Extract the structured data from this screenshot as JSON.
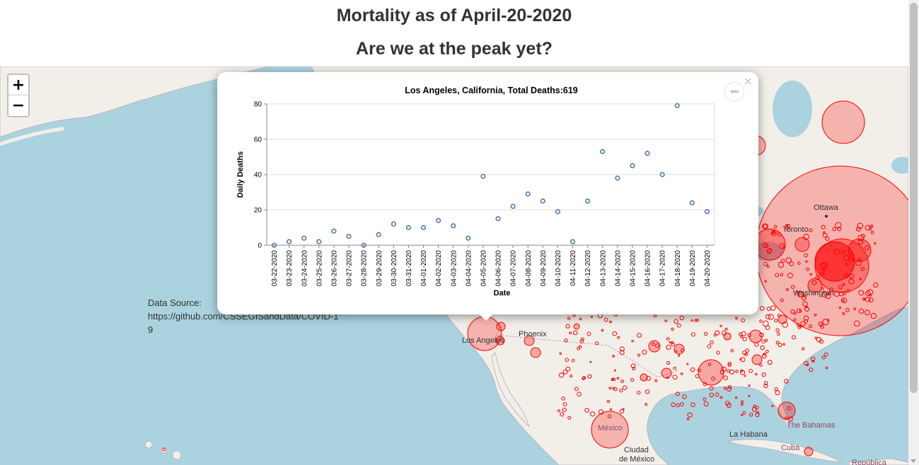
{
  "header": {
    "title": "Mortality as of April-20-2020",
    "subtitle": "Are we at the peak yet?"
  },
  "zoom": {
    "in_label": "+",
    "out_label": "−"
  },
  "data_source": {
    "label": "Data Source:",
    "url": "https://github.com/CSSEGISandData/COVID-19"
  },
  "map_labels": {
    "ottawa": "Ottawa",
    "toronto": "Toronto",
    "washington": "Washington",
    "phoenix": "Phoenix",
    "los_angeles": "Los Angeles",
    "mexico": "México",
    "ciudad": "Ciudad",
    "de_mexico": "de México",
    "la_habana": "La Habana",
    "bahamas": "The Bahamas",
    "cuba": "Cuba",
    "republica": "República"
  },
  "popup": {
    "close_label": "×",
    "more_label": "•••"
  },
  "colors": {
    "water": "#aad3df",
    "land": "#f2efe9",
    "marker": "#ff0000",
    "point": "#4c78a8"
  },
  "chart_data": {
    "type": "scatter",
    "title": "Los Angeles, California,  Total Deaths:619",
    "xlabel": "Date",
    "ylabel": "Daily Deaths",
    "ylim": [
      0,
      80
    ],
    "yticks": [
      0,
      20,
      40,
      60,
      80
    ],
    "grid": true,
    "x": [
      "03-22-2020",
      "03-23-2020",
      "03-24-2020",
      "03-25-2020",
      "03-26-2020",
      "03-27-2020",
      "03-28-2020",
      "03-29-2020",
      "03-30-2020",
      "03-31-2020",
      "04-01-2020",
      "04-02-2020",
      "04-03-2020",
      "04-04-2020",
      "04-05-2020",
      "04-06-2020",
      "04-07-2020",
      "04-08-2020",
      "04-09-2020",
      "04-10-2020",
      "04-11-2020",
      "04-12-2020",
      "04-13-2020",
      "04-14-2020",
      "04-15-2020",
      "04-16-2020",
      "04-17-2020",
      "04-18-2020",
      "04-19-2020",
      "04-20-2020"
    ],
    "values": [
      0,
      2,
      4,
      2,
      8,
      5,
      0,
      6,
      12,
      10,
      10,
      14,
      11,
      4,
      39,
      15,
      22,
      29,
      25,
      19,
      2,
      25,
      53,
      38,
      45,
      52,
      40,
      79,
      24,
      19
    ]
  }
}
